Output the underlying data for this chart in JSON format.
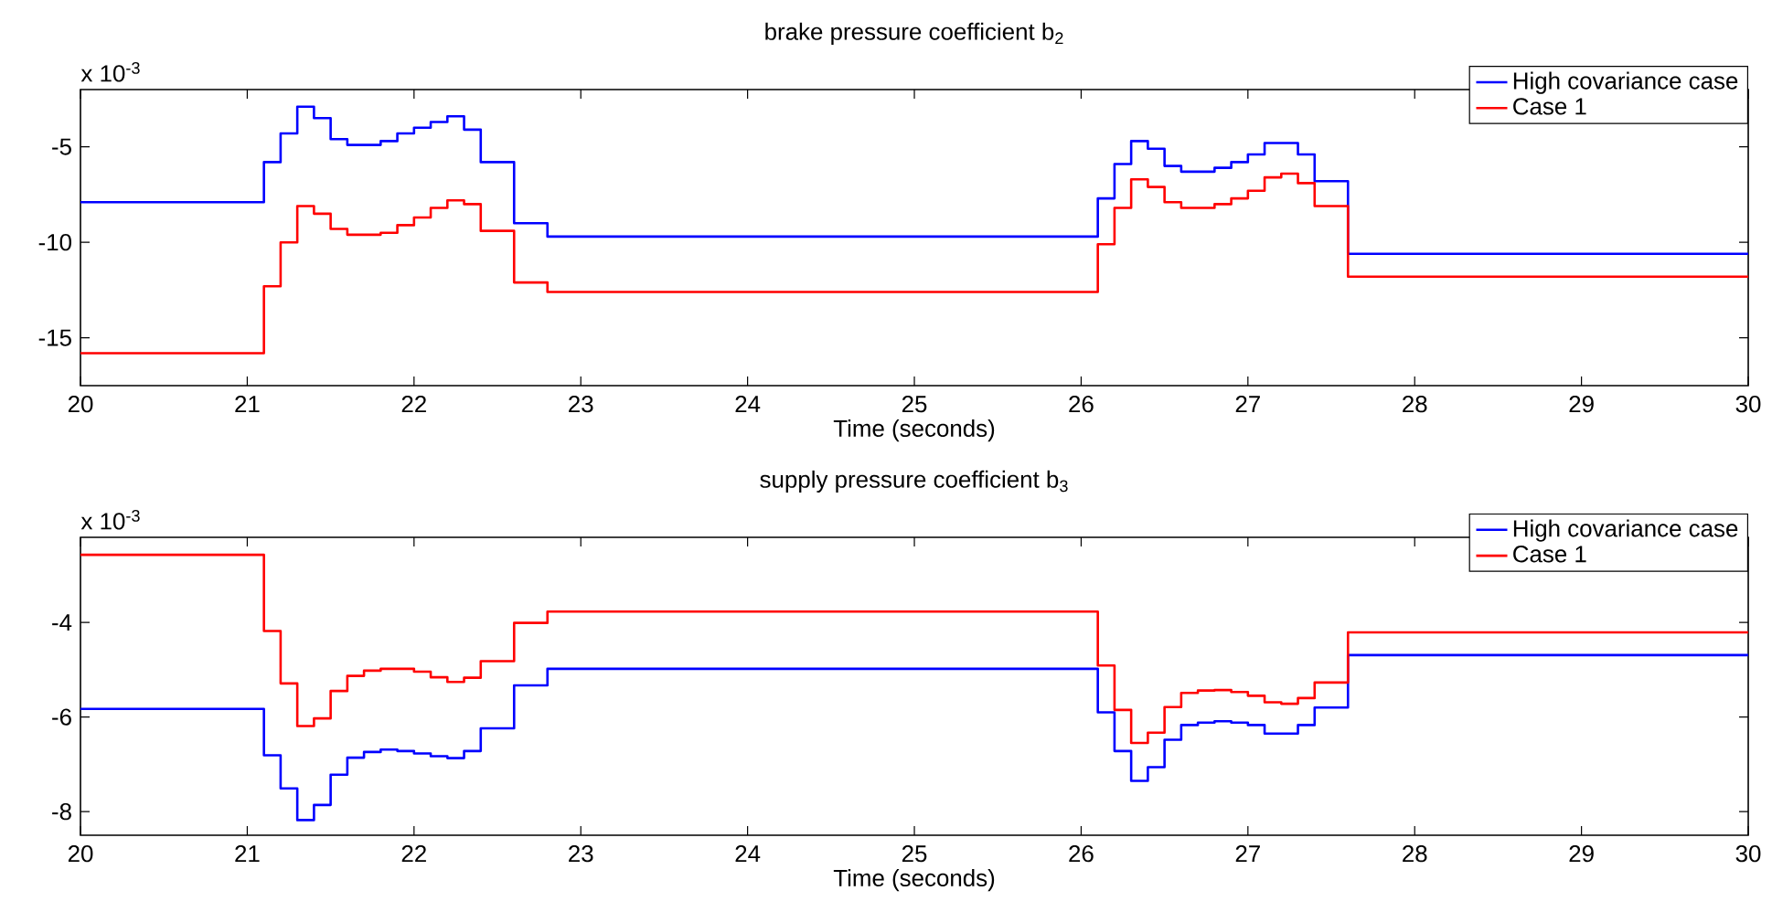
{
  "chart_data": [
    {
      "type": "step",
      "title": "brake pressure coefficient b$_{2}$",
      "xlabel": "Time (seconds)",
      "annotations": [
        "x 10$^{-3}$"
      ],
      "legend": "top right",
      "x": [
        20,
        21.1,
        21.2,
        21.3,
        21.4,
        21.5,
        21.6,
        21.7,
        21.8,
        21.9,
        22.0,
        22.1,
        22.2,
        22.3,
        22.4,
        22.6,
        22.8,
        26.1,
        26.2,
        26.3,
        26.4,
        26.5,
        26.6,
        26.7,
        26.8,
        26.9,
        27.0,
        27.1,
        27.2,
        27.3,
        27.4,
        27.6,
        30
      ],
      "series": [
        {
          "name": "High covariance case",
          "color": "#0000ff",
          "values": [
            -7.9,
            -5.8,
            -4.3,
            -2.9,
            -3.5,
            -4.6,
            -4.9,
            -4.9,
            -4.7,
            -4.3,
            -4.0,
            -3.7,
            -3.4,
            -4.1,
            -5.8,
            -9.0,
            -9.7,
            -7.7,
            -5.9,
            -4.7,
            -5.1,
            -6.0,
            -6.3,
            -6.3,
            -6.1,
            -5.8,
            -5.4,
            -4.8,
            -4.8,
            -5.4,
            -6.8,
            -10.6,
            -10.6
          ]
        },
        {
          "name": "Case 1",
          "color": "#ff0000",
          "values": [
            -15.8,
            -12.3,
            -10.0,
            -8.1,
            -8.5,
            -9.3,
            -9.6,
            -9.6,
            -9.5,
            -9.1,
            -8.7,
            -8.2,
            -7.8,
            -8.0,
            -9.4,
            -12.1,
            -12.6,
            -10.1,
            -8.2,
            -6.7,
            -7.1,
            -7.9,
            -8.2,
            -8.2,
            -8.0,
            -7.7,
            -7.3,
            -6.6,
            -6.4,
            -6.9,
            -8.1,
            -11.8,
            -11.8
          ]
        }
      ],
      "xlim": [
        20,
        30
      ],
      "ylim": [
        -17.5,
        -2
      ],
      "xticks": [
        20,
        21,
        22,
        23,
        24,
        25,
        26,
        27,
        28,
        29,
        30
      ],
      "yticks": [
        -15,
        -10,
        -5
      ]
    },
    {
      "type": "step",
      "title": "supply pressure coefficient b$_{3}$",
      "xlabel": "Time (seconds)",
      "annotations": [
        "x 10$^{-3}$"
      ],
      "legend": "top right",
      "x": [
        20,
        21.1,
        21.2,
        21.3,
        21.4,
        21.5,
        21.6,
        21.7,
        21.8,
        21.9,
        22.0,
        22.1,
        22.2,
        22.3,
        22.4,
        22.6,
        22.8,
        26.1,
        26.2,
        26.3,
        26.4,
        26.5,
        26.6,
        26.7,
        26.8,
        26.9,
        27.0,
        27.1,
        27.2,
        27.3,
        27.4,
        27.6,
        30
      ],
      "series": [
        {
          "name": "High covariance case",
          "color": "#0000ff",
          "values": [
            -5.83,
            -6.81,
            -7.51,
            -8.18,
            -7.86,
            -7.22,
            -6.86,
            -6.74,
            -6.69,
            -6.72,
            -6.77,
            -6.83,
            -6.87,
            -6.72,
            -6.24,
            -5.33,
            -4.98,
            -5.9,
            -6.72,
            -7.35,
            -7.06,
            -6.48,
            -6.17,
            -6.12,
            -6.09,
            -6.12,
            -6.17,
            -6.35,
            -6.35,
            -6.17,
            -5.8,
            -4.69,
            -4.69
          ]
        },
        {
          "name": "Case 1",
          "color": "#ff0000",
          "values": [
            -2.57,
            -4.18,
            -5.29,
            -6.19,
            -6.03,
            -5.45,
            -5.13,
            -5.02,
            -4.98,
            -4.98,
            -5.04,
            -5.16,
            -5.26,
            -5.17,
            -4.82,
            -4.01,
            -3.77,
            -4.91,
            -5.85,
            -6.55,
            -6.33,
            -5.79,
            -5.49,
            -5.44,
            -5.43,
            -5.47,
            -5.55,
            -5.69,
            -5.72,
            -5.6,
            -5.27,
            -4.21,
            -4.21
          ]
        }
      ],
      "xlim": [
        20,
        30
      ],
      "ylim": [
        -8.5,
        -2.2
      ],
      "xticks": [
        20,
        21,
        22,
        23,
        24,
        25,
        26,
        27,
        28,
        29,
        30
      ],
      "yticks": [
        -8,
        -6,
        -4
      ]
    }
  ]
}
